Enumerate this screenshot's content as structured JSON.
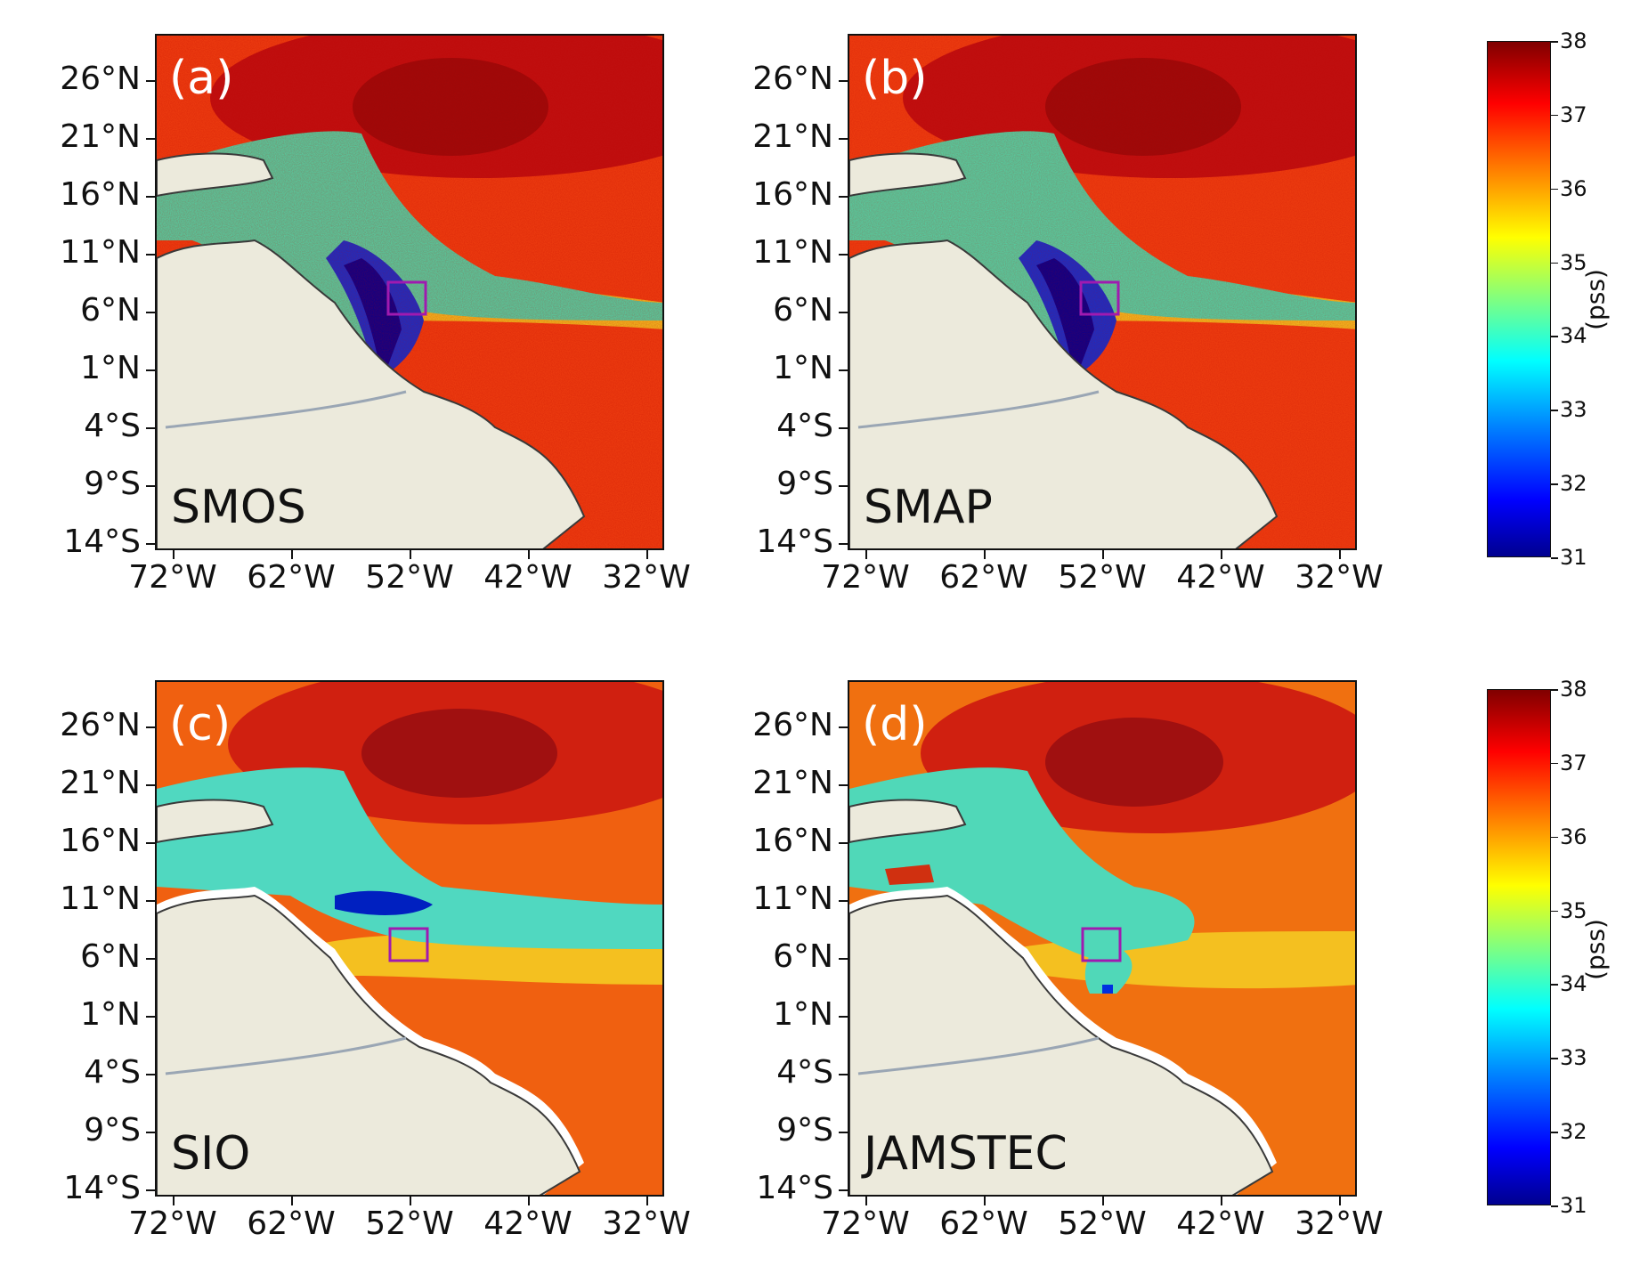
{
  "lat_ticks": [
    "26°N",
    "21°N",
    "16°N",
    "11°N",
    "6°N",
    "1°N",
    "4°S",
    "9°S",
    "14°S"
  ],
  "lon_ticks": [
    "72°W",
    "62°W",
    "52°W",
    "42°W",
    "32°W"
  ],
  "panels": [
    {
      "label": "(a)",
      "title": "SMOS"
    },
    {
      "label": "(b)",
      "title": "SMAP"
    },
    {
      "label": "(c)",
      "title": "SIO"
    },
    {
      "label": "(d)",
      "title": "JAMSTEC"
    }
  ],
  "colorbar": {
    "ticks": [
      "38",
      "37",
      "36",
      "35",
      "34",
      "33",
      "32",
      "31"
    ],
    "label": "(pss)",
    "range": [
      31,
      38
    ]
  },
  "colors": {
    "land": "#eceadc",
    "coast": "#3a3a3a",
    "box": "#a01ab0"
  }
}
